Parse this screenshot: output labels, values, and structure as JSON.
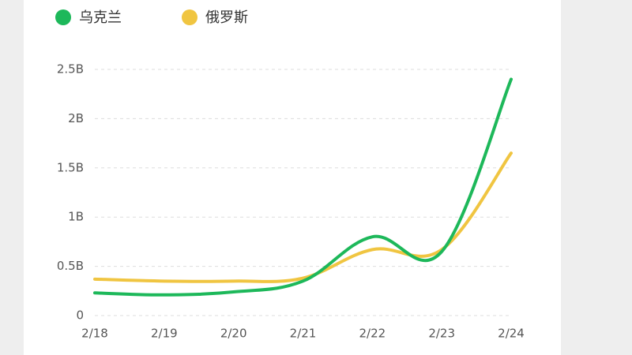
{
  "chart_data": {
    "type": "line",
    "categories": [
      "2/18",
      "2/19",
      "2/20",
      "2/21",
      "2/22",
      "2/23",
      "2/24"
    ],
    "series": [
      {
        "name": "乌克兰",
        "color": "#1db85a",
        "values": [
          0.23,
          0.21,
          0.24,
          0.35,
          0.8,
          0.65,
          2.4
        ]
      },
      {
        "name": "俄罗斯",
        "color": "#f0c541",
        "values": [
          0.37,
          0.35,
          0.35,
          0.38,
          0.67,
          0.67,
          1.65
        ]
      }
    ],
    "ylim": [
      0,
      2.5
    ],
    "yticks": [
      0,
      {
        "value": 0.5,
        "label": "0.5B"
      },
      {
        "value": 1,
        "label": "1B"
      },
      {
        "value": 1.5,
        "label": "1.5B"
      },
      {
        "value": 2,
        "label": "2B"
      },
      {
        "value": 2.5,
        "label": "2.5B"
      }
    ],
    "grid": true
  }
}
